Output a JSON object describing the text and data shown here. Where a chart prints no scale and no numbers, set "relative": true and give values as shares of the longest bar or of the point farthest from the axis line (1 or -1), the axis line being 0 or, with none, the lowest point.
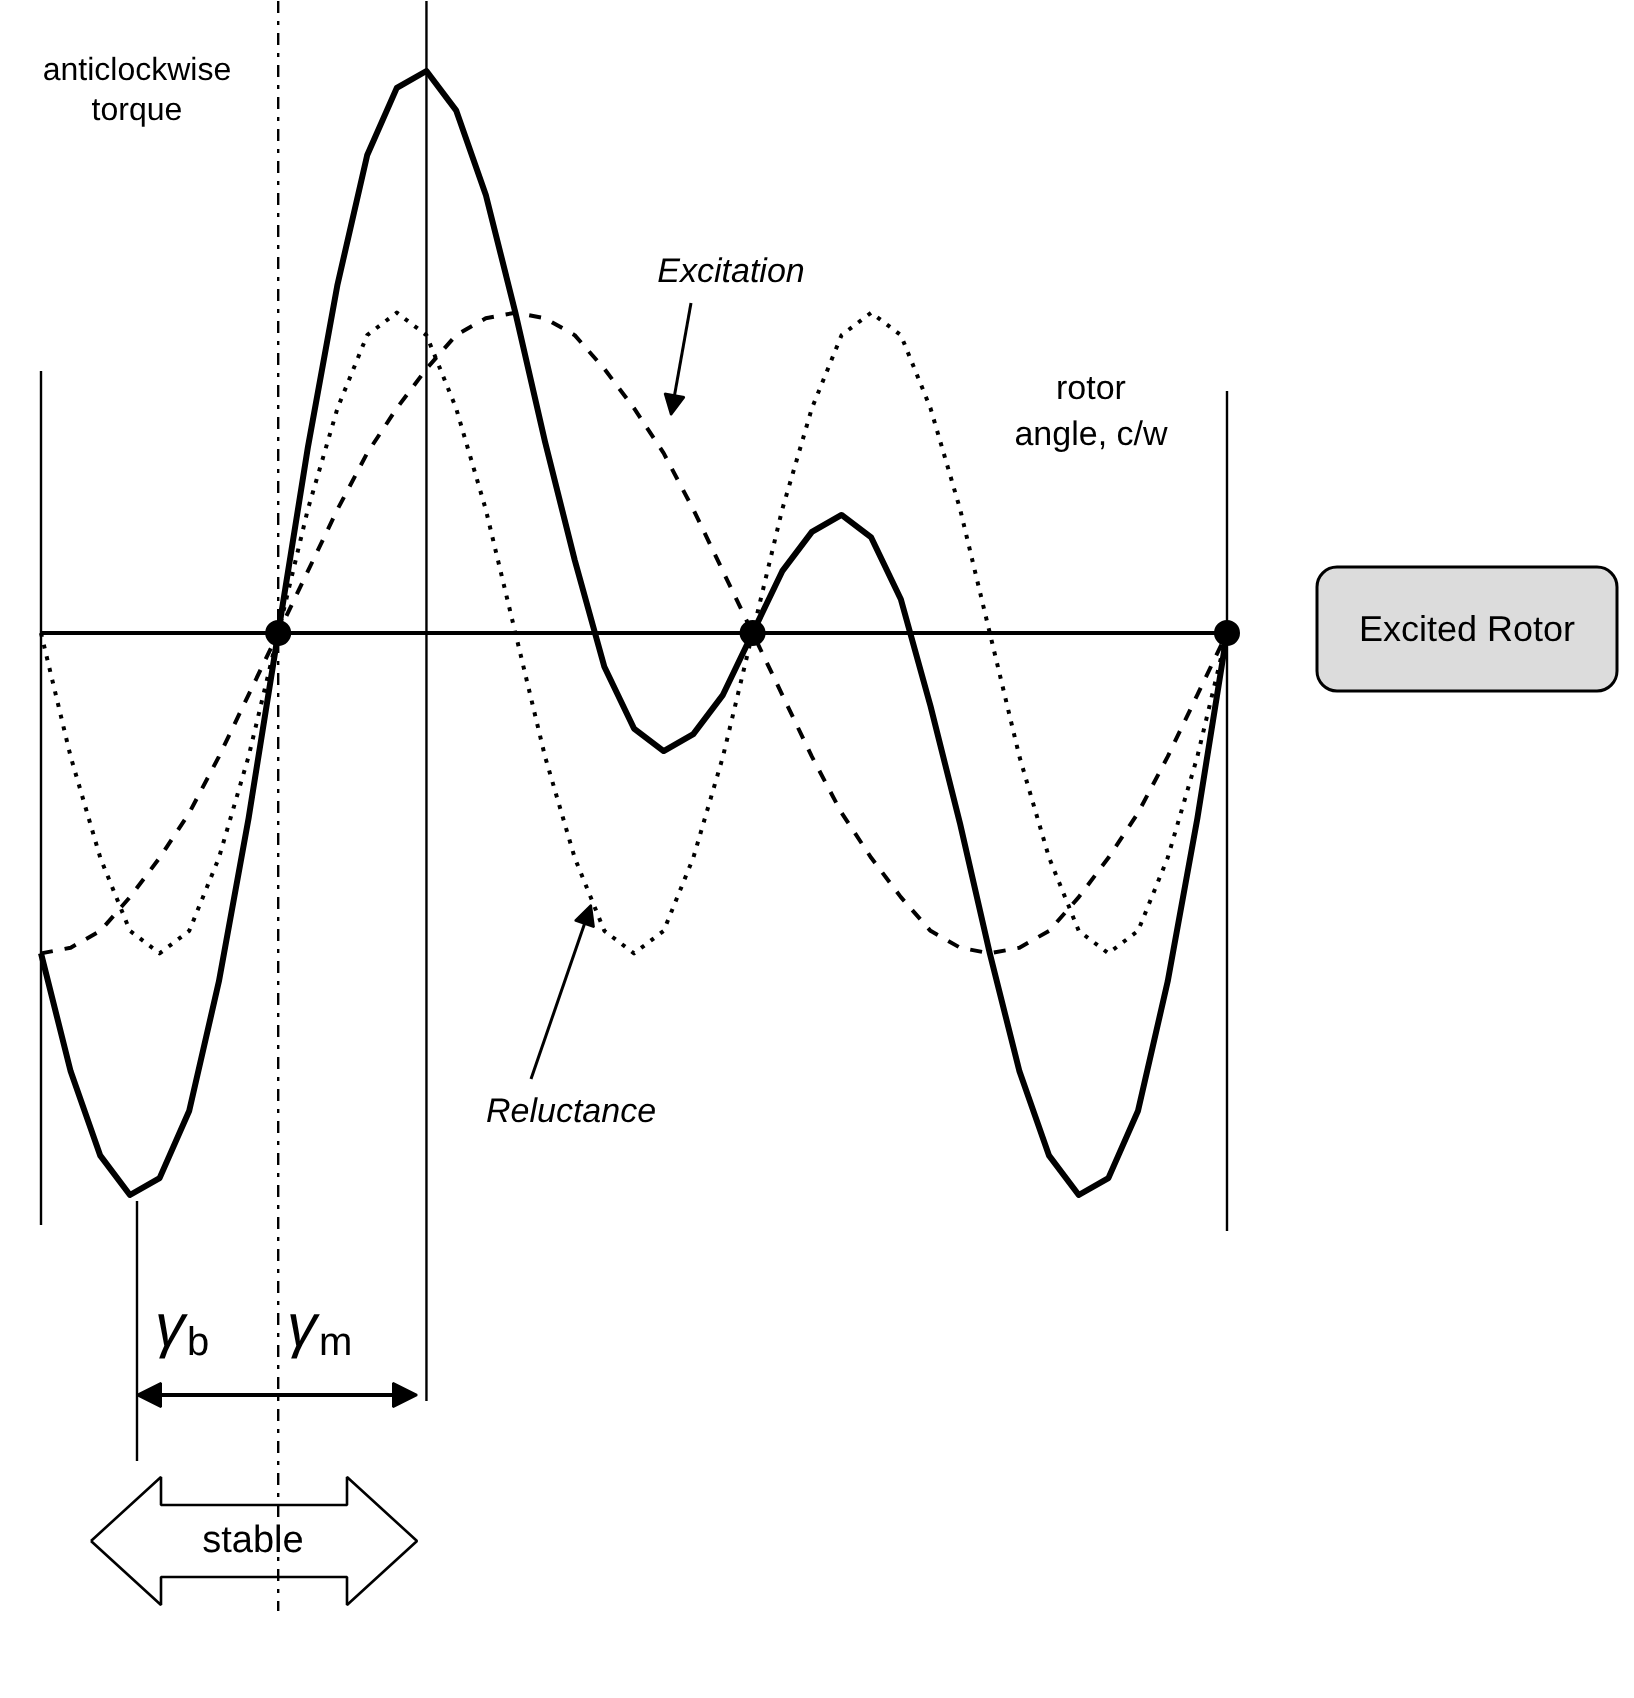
{
  "chart_data": {
    "type": "line",
    "relative": true,
    "grid": false,
    "categories": [
      null,
      null,
      null,
      null,
      null,
      null,
      null,
      null,
      null,
      null,
      null,
      null,
      null,
      null,
      null,
      null,
      null,
      null,
      null,
      null,
      null,
      null,
      null,
      null,
      null,
      null,
      null,
      null,
      null,
      null,
      null,
      null,
      null,
      null,
      null,
      null,
      null,
      null,
      null,
      null,
      null
    ],
    "series": [
      {
        "line_style": "solid",
        "color": "#000000",
        "values": [
          -0.57,
          -0.78,
          -0.93,
          -1.0,
          -0.97,
          -0.85,
          -0.62,
          -0.33,
          0,
          0.33,
          0.62,
          0.85,
          0.97,
          1.0,
          0.93,
          0.78,
          0.57,
          0.34,
          0.13,
          -0.06,
          -0.17,
          -0.21,
          -0.18,
          -0.11,
          0,
          0.11,
          0.18,
          0.21,
          0.17,
          0.06,
          -0.13,
          -0.34,
          -0.57,
          -0.78,
          -0.93,
          -1.0,
          -0.97,
          -0.85,
          -0.62,
          -0.33,
          0
        ]
      },
      {
        "name": "Excitation",
        "line_style": "dashed",
        "color": "#000000",
        "values": [
          -0.57,
          -0.56,
          -0.53,
          -0.47,
          -0.4,
          -0.32,
          -0.22,
          -0.11,
          0,
          0.11,
          0.22,
          0.32,
          0.4,
          0.47,
          0.53,
          0.56,
          0.57,
          0.56,
          0.53,
          0.47,
          0.4,
          0.32,
          0.22,
          0.11,
          0,
          -0.11,
          -0.22,
          -0.32,
          -0.4,
          -0.47,
          -0.53,
          -0.56,
          -0.57,
          -0.56,
          -0.53,
          -0.47,
          -0.4,
          -0.32,
          -0.22,
          -0.11,
          0
        ]
      },
      {
        "name": "Reluctance",
        "line_style": "dotted",
        "color": "#000000",
        "values": [
          0,
          -0.22,
          -0.4,
          -0.53,
          -0.57,
          -0.53,
          -0.4,
          -0.22,
          0,
          0.22,
          0.4,
          0.53,
          0.57,
          0.53,
          0.4,
          0.22,
          0,
          -0.22,
          -0.4,
          -0.53,
          -0.57,
          -0.53,
          -0.4,
          -0.22,
          0,
          0.22,
          0.4,
          0.53,
          0.57,
          0.53,
          0.4,
          0.22,
          0,
          -0.22,
          -0.4,
          -0.53,
          -0.57,
          -0.53,
          -0.4,
          -0.22,
          0
        ]
      }
    ],
    "annotations": [
      "anticlockwise\ntorque",
      "rotor\nangle, c/w",
      "γ$_{b}$",
      "γ$_{m}$",
      "stable",
      "Excited Rotor"
    ]
  }
}
